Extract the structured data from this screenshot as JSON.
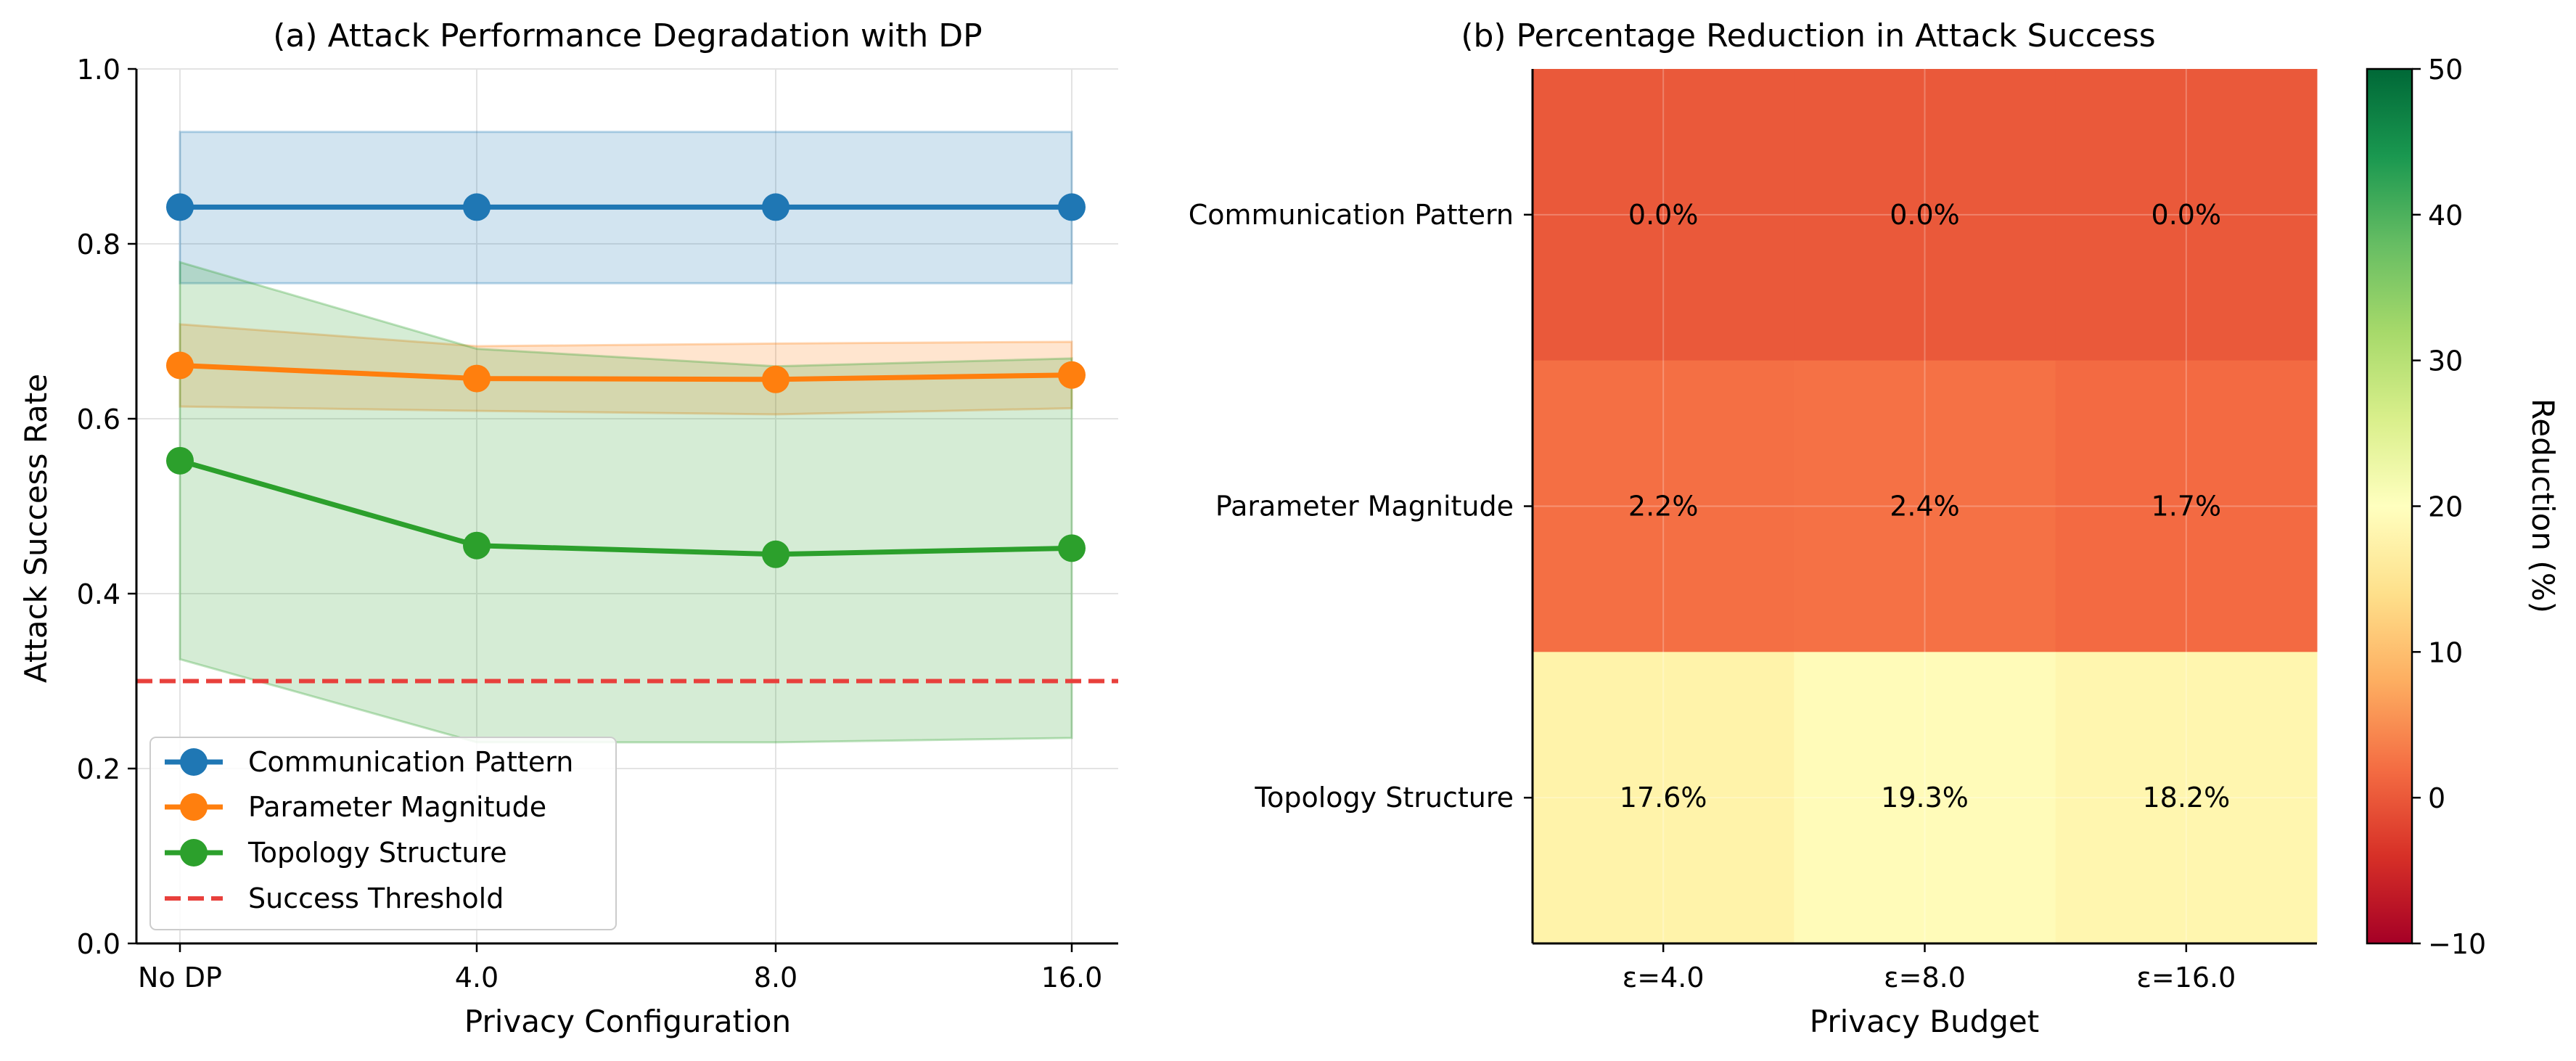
{
  "chart_data": [
    {
      "type": "line",
      "title": "(a) Attack Performance Degradation with DP",
      "xlabel": "Privacy Configuration",
      "ylabel": "Attack Success Rate",
      "categories": [
        "No DP",
        "4.0",
        "8.0",
        "16.0"
      ],
      "ylim": [
        0.0,
        1.0
      ],
      "yticks": [
        "0.0",
        "0.2",
        "0.4",
        "0.6",
        "0.8",
        "1.0"
      ],
      "grid": true,
      "legend_position": "lower-left",
      "series": [
        {
          "name": "Communication Pattern",
          "color": "#1f77b4",
          "values": [
            0.842,
            0.842,
            0.842,
            0.842
          ],
          "lower": [
            0.755,
            0.755,
            0.755,
            0.755
          ],
          "upper": [
            0.928,
            0.928,
            0.928,
            0.928
          ]
        },
        {
          "name": "Parameter Magnitude",
          "color": "#ff7f0e",
          "values": [
            0.661,
            0.646,
            0.645,
            0.65
          ],
          "lower": [
            0.614,
            0.609,
            0.605,
            0.612
          ],
          "upper": [
            0.708,
            0.683,
            0.686,
            0.688
          ]
        },
        {
          "name": "Topology Structure",
          "color": "#2ca02c",
          "values": [
            0.552,
            0.455,
            0.445,
            0.452
          ],
          "lower": [
            0.325,
            0.23,
            0.23,
            0.235
          ],
          "upper": [
            0.779,
            0.68,
            0.66,
            0.669
          ]
        }
      ],
      "threshold": {
        "name": "Success Threshold",
        "value": 0.3,
        "color": "#e8403c"
      }
    },
    {
      "type": "heatmap",
      "title": "(b) Percentage Reduction in Attack Success",
      "xlabel": "Privacy Budget",
      "ylabel": "",
      "x_categories": [
        "ε=4.0",
        "ε=8.0",
        "ε=16.0"
      ],
      "y_categories": [
        "Communication Pattern",
        "Parameter Magnitude",
        "Topology Structure"
      ],
      "values": [
        [
          0.0,
          0.0,
          0.0
        ],
        [
          2.2,
          2.4,
          1.7
        ],
        [
          17.6,
          19.3,
          18.2
        ]
      ],
      "cell_labels": [
        [
          "0.0%",
          "0.0%",
          "0.0%"
        ],
        [
          "2.2%",
          "2.4%",
          "1.7%"
        ],
        [
          "17.6%",
          "19.3%",
          "18.2%"
        ]
      ],
      "colorbar": {
        "label": "Reduction (%)",
        "range": [
          -10,
          50
        ],
        "ticks": [
          -10,
          0,
          10,
          20,
          30,
          40,
          50
        ],
        "tick_labels": [
          "−10",
          "0",
          "10",
          "20",
          "30",
          "40",
          "50"
        ],
        "colormap": "RdYlGn"
      },
      "grid": true
    }
  ]
}
